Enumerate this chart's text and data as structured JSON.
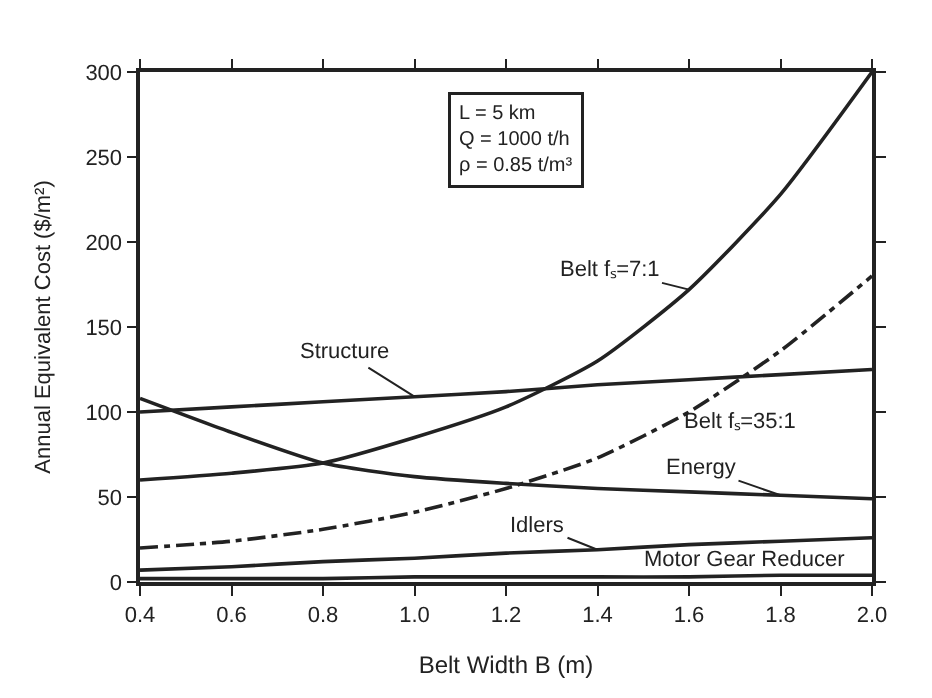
{
  "chart_data": {
    "type": "line",
    "xlabel": "Belt Width B (m)",
    "ylabel": "Annual Equivalent Cost ($/m²)",
    "x": [
      0.4,
      0.6,
      0.8,
      1.0,
      1.2,
      1.4,
      1.6,
      1.8,
      2.0
    ],
    "series": [
      {
        "name": "Belt fₛ=7:1",
        "color": "#222222",
        "line_style": "solid",
        "values": [
          60,
          64,
          70,
          85,
          103,
          130,
          172,
          228,
          300
        ]
      },
      {
        "name": "Belt fₛ=35:1",
        "color": "#222222",
        "line_style": "dashed",
        "values": [
          20,
          24,
          31,
          41,
          55,
          73,
          100,
          136,
          180
        ]
      },
      {
        "name": "Structure",
        "color": "#222222",
        "line_style": "solid",
        "values": [
          100,
          103,
          106,
          109,
          112,
          116,
          119,
          122,
          125
        ]
      },
      {
        "name": "Energy",
        "color": "#222222",
        "line_style": "solid",
        "values": [
          108,
          88,
          70,
          62,
          58,
          55,
          53,
          51,
          49
        ]
      },
      {
        "name": "Idlers",
        "color": "#222222",
        "line_style": "solid",
        "values": [
          7,
          9,
          12,
          14,
          17,
          19,
          22,
          24,
          26
        ]
      },
      {
        "name": "Motor Gear Reducer",
        "color": "#222222",
        "line_style": "solid",
        "values": [
          2,
          2,
          2,
          3,
          3,
          3,
          3,
          4,
          4
        ]
      }
    ],
    "annotations": [
      "L = 5 km\nQ = 1000 t/h\nρ = 0.85 t/m³"
    ],
    "xlim": [
      0.4,
      2.0
    ],
    "ylim": [
      0,
      300
    ],
    "xticks": [
      0.4,
      0.6,
      0.8,
      {
        "value": 1.0,
        "label": "1.0"
      },
      1.2,
      1.4,
      1.6,
      1.8,
      {
        "value": 2.0,
        "label": "2.0"
      }
    ],
    "yticks": [
      0,
      50,
      100,
      150,
      200,
      250,
      300
    ],
    "marker": "none"
  }
}
